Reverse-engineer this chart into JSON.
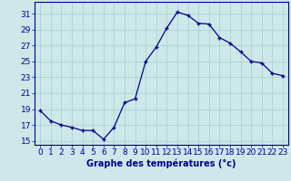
{
  "hours": [
    0,
    1,
    2,
    3,
    4,
    5,
    6,
    7,
    8,
    9,
    10,
    11,
    12,
    13,
    14,
    15,
    16,
    17,
    18,
    19,
    20,
    21,
    22,
    23
  ],
  "temperatures": [
    18.8,
    17.5,
    17.0,
    16.7,
    16.3,
    16.3,
    15.2,
    16.7,
    19.8,
    20.3,
    25.0,
    26.8,
    29.2,
    31.2,
    30.8,
    29.8,
    29.7,
    28.0,
    27.3,
    26.2,
    25.0,
    24.8,
    23.5,
    23.2
  ],
  "line_color": "#00008b",
  "marker": "+",
  "xlabel": "Graphe des températures (°c)",
  "ylabel_ticks": [
    15,
    17,
    19,
    21,
    23,
    25,
    27,
    29,
    31
  ],
  "ylim": [
    14.5,
    32.5
  ],
  "xlim": [
    -0.5,
    23.5
  ],
  "bg_color": "#cce8e8",
  "grid_color": "#aacccc",
  "axis_color": "#00008b",
  "xlabel_fontsize": 7,
  "tick_fontsize": 6.5
}
